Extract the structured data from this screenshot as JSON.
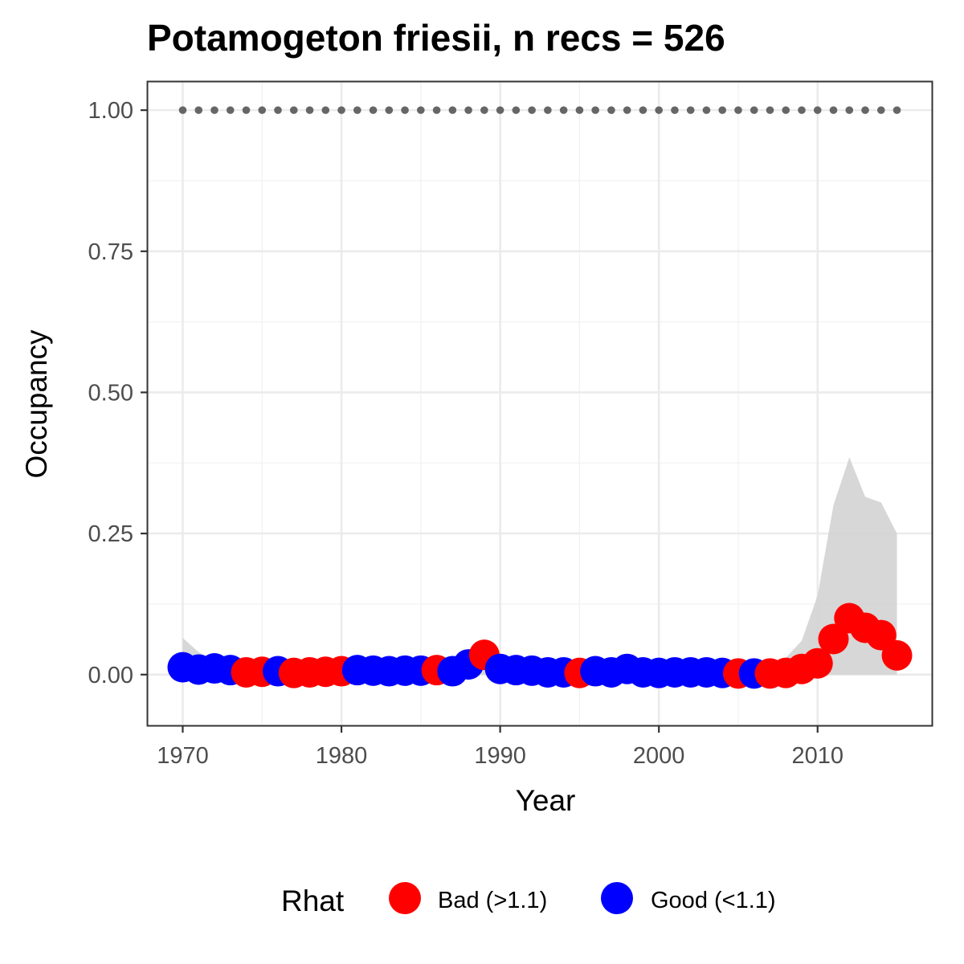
{
  "chart_data": {
    "type": "scatter",
    "title": "Potamogeton friesii, n recs = 526",
    "xlabel": "Year",
    "ylabel": "Occupancy",
    "xlim": [
      1967.8,
      2017.2
    ],
    "ylim": [
      -0.09,
      1.05
    ],
    "x_ticks": [
      1970,
      1980,
      1990,
      2000,
      2010
    ],
    "x_tick_labels": [
      "1970",
      "1980",
      "1990",
      "2000",
      "2010"
    ],
    "y_ticks": [
      0,
      0.25,
      0.5,
      0.75,
      1.0
    ],
    "y_tick_labels": [
      "0.00",
      "0.25",
      "0.50",
      "0.75",
      "1.00"
    ],
    "grid": true,
    "legend": {
      "title": "Rhat",
      "position": "bottom",
      "entries": [
        {
          "label": "Bad (>1.1)",
          "color": "#ff0000"
        },
        {
          "label": "Good (<1.1)",
          "color": "#0000ff"
        }
      ]
    },
    "reference_line": {
      "style": "dotted",
      "color": "#666666",
      "x_start": 1970,
      "x_end": 2015,
      "y": 1.0
    },
    "ribbon": {
      "color": "#d3d3d3",
      "x": [
        1970,
        1971,
        1972,
        1973,
        1974,
        1975,
        1976,
        1977,
        1978,
        1979,
        1980,
        1981,
        1982,
        1983,
        1984,
        1985,
        1986,
        1987,
        1988,
        1989,
        1990,
        1991,
        1992,
        1993,
        1994,
        1995,
        1996,
        1997,
        1998,
        1999,
        2000,
        2001,
        2002,
        2003,
        2004,
        2005,
        2006,
        2007,
        2008,
        2009,
        2010,
        2011,
        2012,
        2013,
        2014,
        2015
      ],
      "lower": [
        0,
        0,
        0,
        0,
        0,
        0,
        0,
        0,
        0,
        0,
        0,
        0,
        0,
        0,
        0,
        0,
        0,
        0,
        0,
        0,
        0,
        0,
        0,
        0,
        0,
        0,
        0,
        0,
        0,
        0,
        0,
        0,
        0,
        0,
        0,
        0,
        0,
        0,
        0,
        0,
        0,
        0,
        0,
        0,
        0,
        0
      ],
      "upper": [
        0.065,
        0.04,
        0.025,
        0.02,
        0.02,
        0.02,
        0.02,
        0.02,
        0.02,
        0.02,
        0.02,
        0.02,
        0.02,
        0.02,
        0.02,
        0.02,
        0.02,
        0.025,
        0.03,
        0.04,
        0.02,
        0.02,
        0.02,
        0.02,
        0.02,
        0.02,
        0.02,
        0.02,
        0.02,
        0.02,
        0.02,
        0.02,
        0.02,
        0.02,
        0.02,
        0.02,
        0.02,
        0.02,
        0.03,
        0.06,
        0.14,
        0.3,
        0.385,
        0.315,
        0.305,
        0.25
      ]
    },
    "series": [
      {
        "name": "Bad (>1.1)",
        "color": "#ff0000",
        "x": [
          1974,
          1975,
          1977,
          1978,
          1979,
          1980,
          1986,
          1989,
          1995,
          2005,
          2007,
          2008,
          2009,
          2010,
          2011,
          2012,
          2013,
          2014,
          2015
        ],
        "y": [
          0.004,
          0.005,
          0.003,
          0.004,
          0.005,
          0.006,
          0.008,
          0.035,
          0.003,
          0.002,
          0.002,
          0.003,
          0.01,
          0.02,
          0.063,
          0.1,
          0.083,
          0.07,
          0.034
        ]
      },
      {
        "name": "Good (<1.1)",
        "color": "#0000ff",
        "x": [
          1970,
          1971,
          1972,
          1973,
          1976,
          1981,
          1982,
          1983,
          1984,
          1985,
          1987,
          1988,
          1990,
          1991,
          1992,
          1993,
          1994,
          1996,
          1997,
          1998,
          1999,
          2000,
          2001,
          2002,
          2003,
          2004,
          2006
        ],
        "y": [
          0.013,
          0.009,
          0.011,
          0.008,
          0.006,
          0.008,
          0.007,
          0.006,
          0.007,
          0.007,
          0.006,
          0.018,
          0.01,
          0.008,
          0.007,
          0.004,
          0.004,
          0.006,
          0.004,
          0.01,
          0.004,
          0.003,
          0.004,
          0.004,
          0.004,
          0.003,
          0.002
        ]
      }
    ]
  }
}
